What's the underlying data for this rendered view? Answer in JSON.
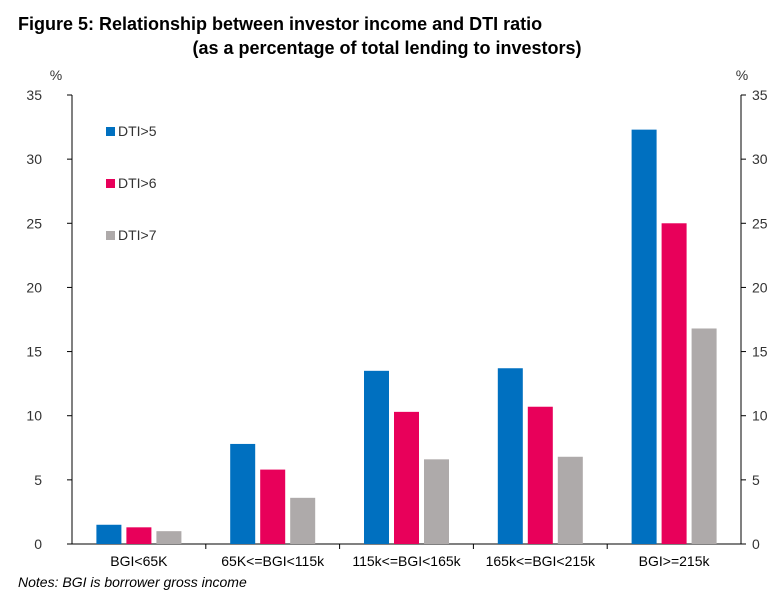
{
  "title_line1": "Figure 5: Relationship between investor income and DTI ratio",
  "title_line2": "(as a percentage of total lending to investors)",
  "note": "Notes: BGI is borrower gross income",
  "chart_data": {
    "type": "bar",
    "title": "Figure 5: Relationship between investor income and DTI ratio (as a percentage of total lending to investors)",
    "categories": [
      "BGI<65K",
      "65K<=BGI<115k",
      "115k<=BGI<165k",
      "165k<=BGI<215k",
      "BGI>=215k"
    ],
    "series": [
      {
        "name": "DTI>5",
        "color": "#0070c0",
        "values": [
          1.5,
          7.8,
          13.5,
          13.7,
          32.3
        ]
      },
      {
        "name": "DTI>6",
        "color": "#e8005a",
        "values": [
          1.3,
          5.8,
          10.3,
          10.7,
          25.0
        ]
      },
      {
        "name": "DTI>7",
        "color": "#aeaaaa",
        "values": [
          1.0,
          3.6,
          6.6,
          6.8,
          16.8
        ]
      }
    ],
    "ylim": [
      0,
      35
    ],
    "yticks": [
      0,
      5,
      10,
      15,
      20,
      25,
      30,
      35
    ],
    "left_axis_unit": "%",
    "right_axis_unit": "%",
    "legend_position": "top-left",
    "grid": false
  }
}
